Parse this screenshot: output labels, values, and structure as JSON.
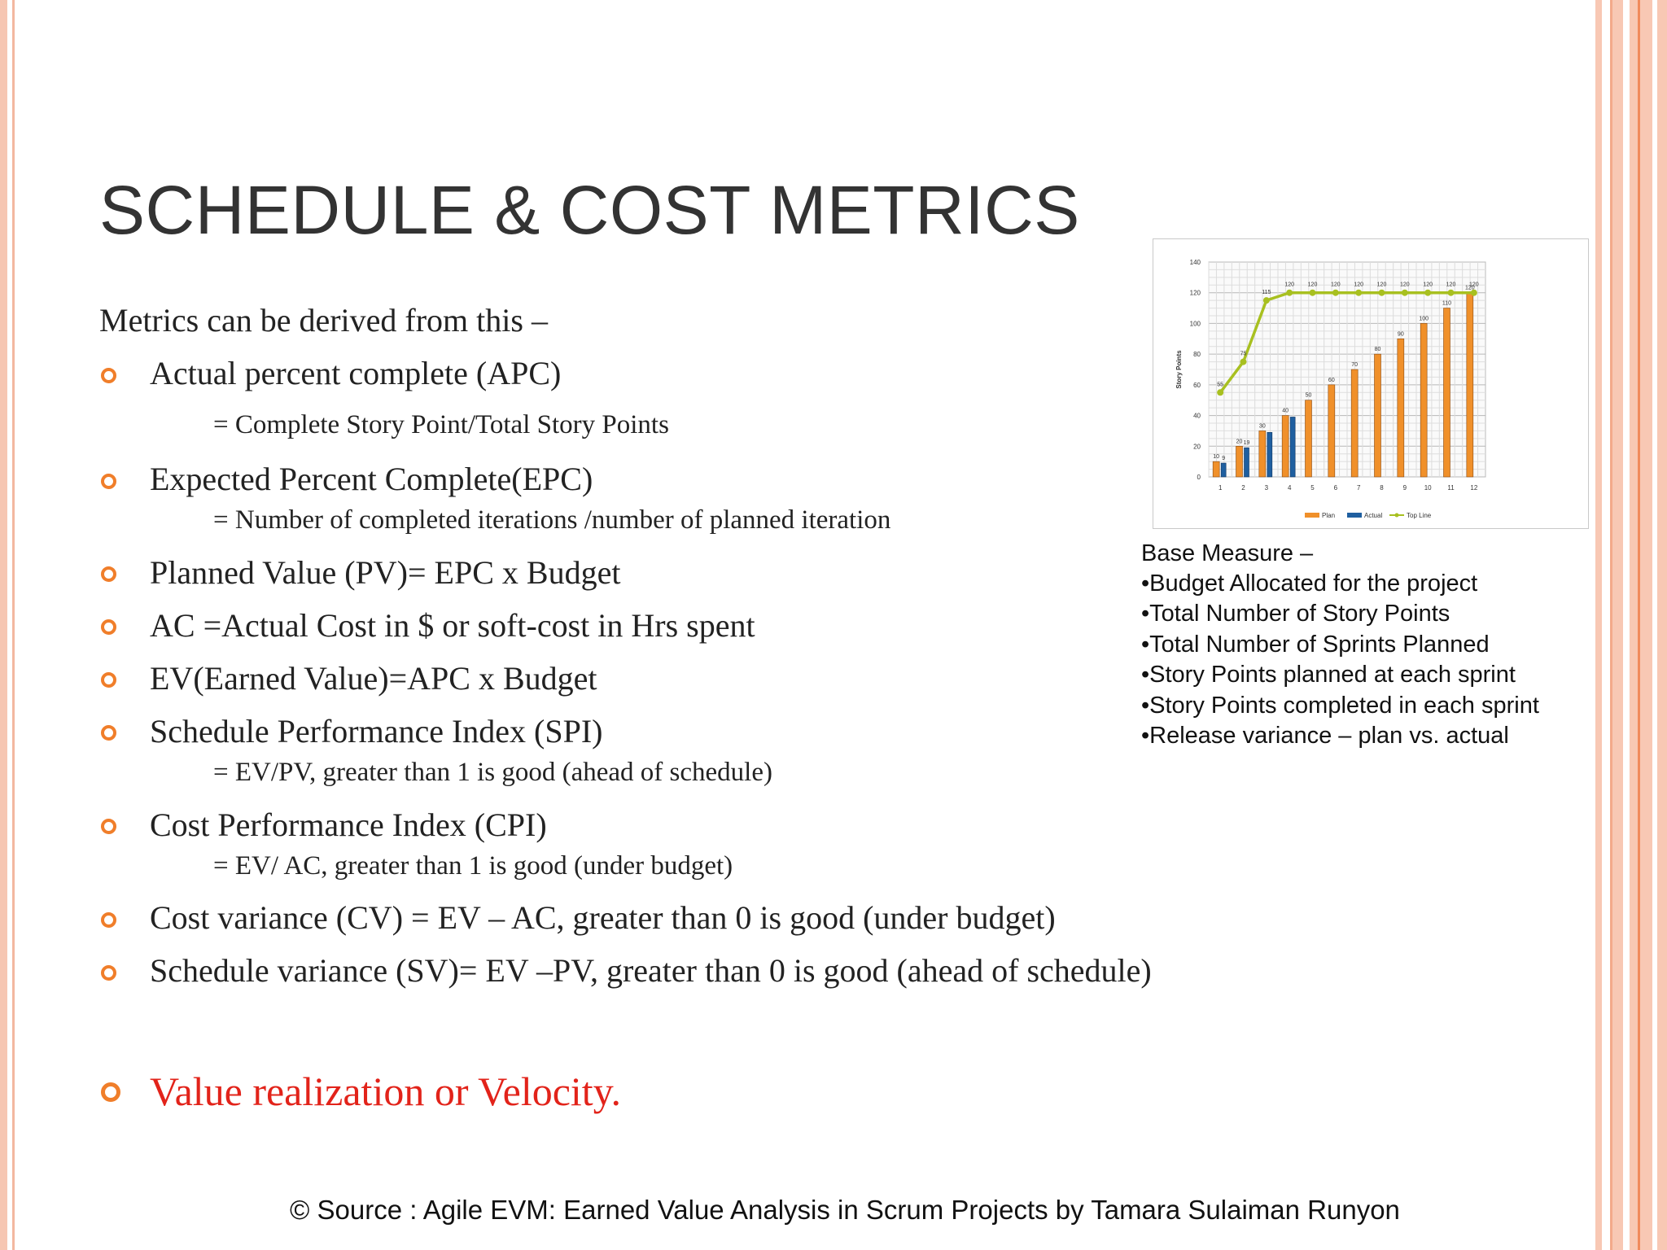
{
  "title": "SCHEDULE & COST METRICS",
  "intro": "Metrics can be derived from this  –",
  "bullets": [
    {
      "text": "Actual  percent complete (APC)",
      "sub": "= Complete Story Point/Total Story Points"
    },
    {
      "text": "Expected Percent Complete(EPC)",
      "sub": "=  Number of completed iterations /number of planned iteration"
    },
    {
      "text": "Planned Value (PV)= EPC x Budget"
    },
    {
      "text": "AC =Actual Cost in $ or soft-cost in Hrs spent"
    },
    {
      "text": "EV(Earned Value)=APC x Budget"
    },
    {
      "text": "Schedule Performance Index (SPI)",
      "sub": "=  EV/PV, greater than 1 is good (ahead of schedule)"
    },
    {
      "text": "Cost Performance Index (CPI)",
      "sub": "=  EV/ AC, greater than 1 is good (under budget)"
    },
    {
      "text": "Cost variance (CV) = EV – AC, greater than 0 is good (under budget)"
    },
    {
      "text": "Schedule variance (SV)= EV –PV, greater than 0 is good (ahead of schedule)"
    }
  ],
  "highlight": "Value realization or Velocity.",
  "base_measure": {
    "heading": "Base Measure –",
    "items": [
      "•Budget  Allocated for the project",
      "•Total Number of Story Points",
      "•Total Number of Sprints Planned",
      "•Story Points planned at each sprint",
      "•Story Points completed in each sprint",
      "•Release variance – plan vs. actual"
    ]
  },
  "footer": "© Source :  Agile EVM: Earned Value Analysis in Scrum Projects  by Tamara Sulaiman Runyon",
  "colors": {
    "accent": "#f07e2a",
    "highlight": "#e2231a",
    "plan": "#f0902a",
    "actual": "#1f5fa0",
    "topline": "#a8c020"
  },
  "chart_data": {
    "type": "bar",
    "categories": [
      "1",
      "2",
      "3",
      "4",
      "5",
      "6",
      "7",
      "8",
      "9",
      "10",
      "11",
      "12"
    ],
    "ylabel": "Story Points",
    "ylim": [
      0,
      140
    ],
    "yticks": [
      "0",
      "20",
      "40",
      "60",
      "80",
      "100",
      "120",
      "140"
    ],
    "series": [
      {
        "name": "Plan",
        "type": "bar",
        "values": [
          10,
          20,
          30,
          40,
          50,
          60,
          70,
          80,
          90,
          100,
          110,
          120
        ],
        "labels": [
          "10",
          "20",
          "30",
          "40",
          "50",
          "60",
          "70",
          "80",
          "90",
          "100",
          "110",
          "120"
        ]
      },
      {
        "name": "Actual",
        "type": "bar",
        "values": [
          9,
          19,
          29,
          39,
          null,
          null,
          null,
          null,
          null,
          null,
          null,
          null
        ],
        "labels": [
          "9",
          "19",
          "",
          "",
          "",
          "",
          "",
          "",
          "",
          "",
          "",
          ""
        ]
      },
      {
        "name": "Top Line",
        "type": "line",
        "values": [
          55,
          75,
          115,
          120,
          120,
          120,
          120,
          120,
          120,
          120,
          120,
          120
        ],
        "labels": [
          "55",
          "75",
          "115",
          "120",
          "120",
          "120",
          "120",
          "120",
          "120",
          "120",
          "120",
          "120"
        ]
      }
    ]
  }
}
